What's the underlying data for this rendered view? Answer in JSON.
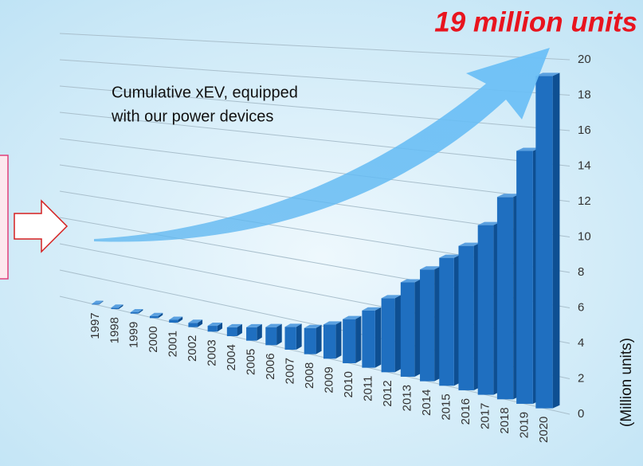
{
  "chart_data": {
    "type": "bar",
    "title": "19 million units",
    "annotation_lines": [
      "Cumulative xEV, equipped",
      "with our power devices"
    ],
    "y_label": "(Million units)",
    "categories": [
      "1997",
      "1998",
      "1999",
      "2000",
      "2001",
      "2002",
      "2003",
      "2004",
      "2005",
      "2006",
      "2007",
      "2008",
      "2009",
      "2010",
      "2011",
      "2012",
      "2013",
      "2014",
      "2015",
      "2016",
      "2017",
      "2018",
      "2019",
      "2020"
    ],
    "values": [
      0.05,
      0.1,
      0.1,
      0.15,
      0.2,
      0.3,
      0.4,
      0.6,
      0.9,
      1.2,
      1.5,
      1.7,
      2.2,
      2.8,
      3.6,
      4.6,
      5.8,
      6.8,
      7.7,
      8.6,
      10.0,
      11.8,
      14.6,
      19
    ],
    "color": "#1f6fc0",
    "ylim": [
      0,
      20
    ],
    "yticks": [
      0,
      2,
      4,
      6,
      8,
      10,
      12,
      14,
      16,
      18,
      20
    ],
    "grid": true
  }
}
